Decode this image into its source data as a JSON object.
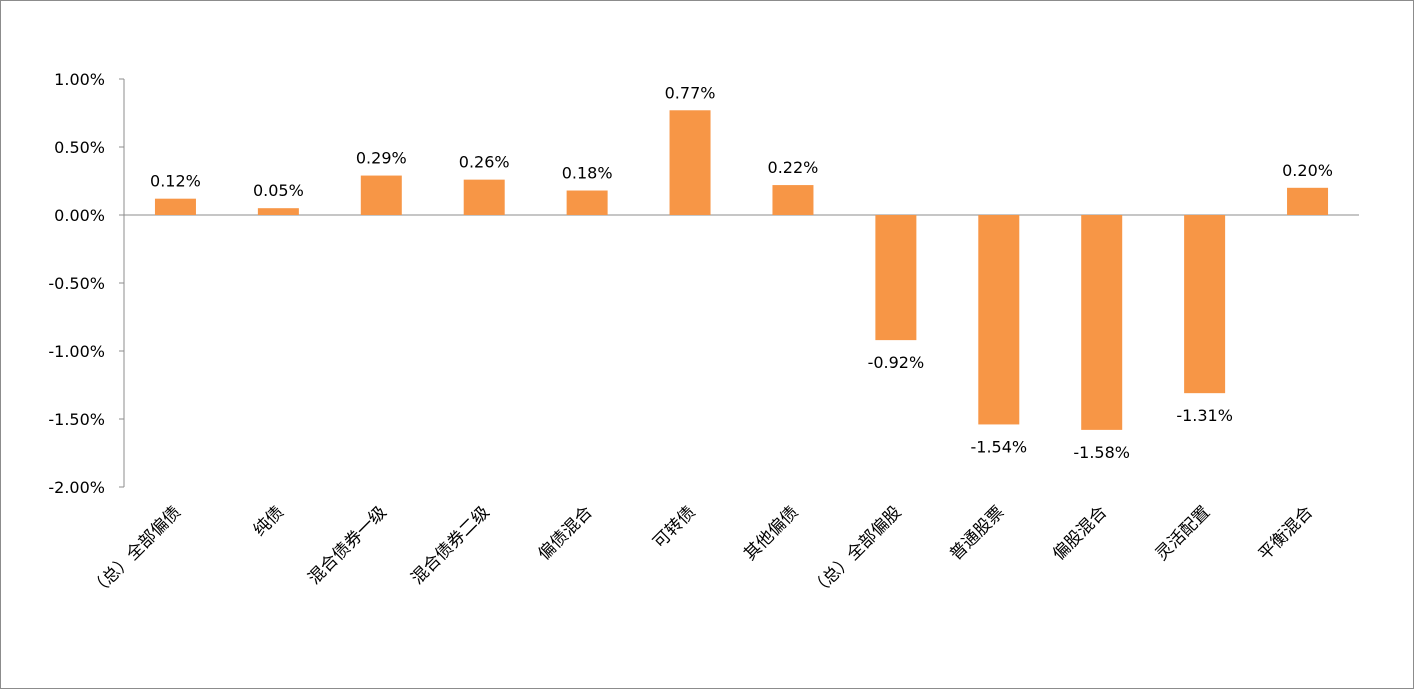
{
  "chart_data": {
    "type": "bar",
    "title": "",
    "xlabel": "",
    "ylabel": "",
    "categories": [
      "（总）全部偏债",
      "纯债",
      "混合债券一级",
      "混合债券二级",
      "偏债混合",
      "可转债",
      "其他偏债",
      "（总）全部偏股",
      "普通股票",
      "偏股混合",
      "灵活配置",
      "平衡混合"
    ],
    "values": [
      0.12,
      0.05,
      0.29,
      0.26,
      0.18,
      0.77,
      0.22,
      -0.92,
      -1.54,
      -1.58,
      -1.31,
      0.2
    ],
    "data_labels": [
      "0.12%",
      "0.05%",
      "0.29%",
      "0.26%",
      "0.18%",
      "0.77%",
      "0.22%",
      "-0.92%",
      "-1.54%",
      "-1.58%",
      "-1.31%",
      "0.20%"
    ],
    "y_ticks": [
      1.0,
      0.5,
      0.0,
      -0.5,
      -1.0,
      -1.5,
      -2.0
    ],
    "y_tick_labels": [
      "1.00%",
      "0.50%",
      "0.00%",
      "-0.50%",
      "-1.00%",
      "-1.50%",
      "-2.00%"
    ],
    "ylim": [
      -2.0,
      1.0
    ],
    "grid": false,
    "legend": "none",
    "bar_color": "#F79646",
    "axis_color": "#8c8c8c"
  }
}
